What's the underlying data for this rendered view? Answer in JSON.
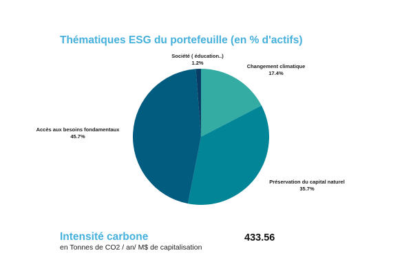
{
  "chart_data": {
    "type": "pie",
    "title": "Thématiques ESG du portefeuille (en % d'actifs)",
    "categories": [
      "Changement climatique",
      "Préservation du capital naturel",
      "Accès aux besoins fondamentaux",
      "Société ( éducation..)"
    ],
    "values": [
      17.4,
      35.7,
      45.7,
      1.2
    ],
    "value_labels": [
      "17.4%",
      "35.7%",
      "45.7%",
      "1.2%"
    ],
    "colors": [
      "#34aca3",
      "#028597",
      "#025c7f",
      "#0a3d66"
    ],
    "start_angle_deg": 0,
    "direction": "clockwise"
  },
  "carbon": {
    "title": "Intensité carbone",
    "subtitle": "en Tonnes de CO2 / an/ M$ de capitalisation",
    "value": "433.56"
  }
}
